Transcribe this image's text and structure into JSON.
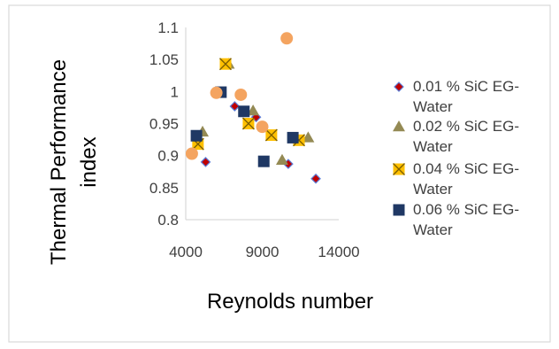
{
  "chart_data": {
    "type": "scatter",
    "title": "",
    "xlabel": "Reynolds number",
    "ylabel_lines": [
      "Thermal Performance",
      "index"
    ],
    "xlim": [
      4000,
      14000
    ],
    "ylim": [
      0.8,
      1.1
    ],
    "x_ticks": [
      "4000",
      "9000",
      "14000"
    ],
    "y_ticks": [
      "0.8",
      "0.85",
      "0.9",
      "0.95",
      "1",
      "1.05",
      "1.1"
    ],
    "grid": false,
    "legend_position": "right",
    "series": [
      {
        "name_lines": [
          "0.01 % SiC EG-",
          "Water"
        ],
        "marker": "diamond",
        "color": "#C00000",
        "points": [
          [
            5300,
            0.89
          ],
          [
            7200,
            0.977
          ],
          [
            8600,
            0.96
          ],
          [
            10700,
            0.887
          ],
          [
            12500,
            0.864
          ]
        ]
      },
      {
        "name_lines": [
          "0.02 % SiC EG-",
          "Water"
        ],
        "marker": "triangle",
        "color": "#948A54",
        "points": [
          [
            5100,
            0.937
          ],
          [
            6800,
            1.043
          ],
          [
            8400,
            0.97
          ],
          [
            10300,
            0.893
          ],
          [
            12000,
            0.928
          ]
        ]
      },
      {
        "name_lines": [
          "0.04 % SiC EG-",
          "Water"
        ],
        "marker": "x-square",
        "color": "#FFC000",
        "points": [
          [
            4800,
            0.918
          ],
          [
            6600,
            1.043
          ],
          [
            8100,
            0.95
          ],
          [
            9600,
            0.932
          ],
          [
            11400,
            0.924
          ]
        ]
      },
      {
        "name_lines": [
          "0.06 % SiC EG-",
          "Water"
        ],
        "marker": "square",
        "color": "#1F3864",
        "points": [
          [
            4700,
            0.931
          ],
          [
            6300,
            0.999
          ],
          [
            7800,
            0.969
          ],
          [
            9100,
            0.891
          ],
          [
            11000,
            0.928
          ]
        ]
      },
      {
        "marker": "circle",
        "color": "#F4A460",
        "points": [
          [
            4400,
            0.903
          ],
          [
            6000,
            0.998
          ],
          [
            7600,
            0.995
          ],
          [
            9000,
            0.945
          ],
          [
            10600,
            1.083
          ]
        ]
      }
    ]
  }
}
